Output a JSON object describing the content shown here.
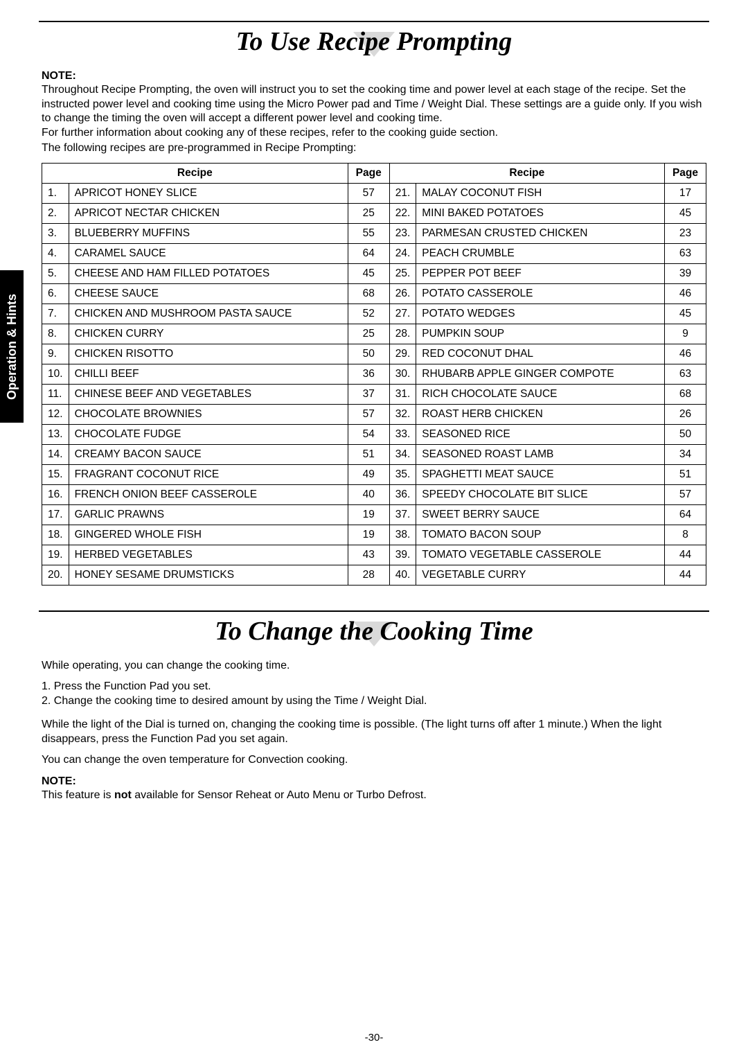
{
  "sideTab": "Operation & Hints",
  "section1": {
    "heading": "To Use Recipe Prompting",
    "noteLabel": "NOTE:",
    "noteBody": "Throughout Recipe Prompting, the oven will instruct you to set the cooking time and power level at each stage of the recipe. Set the instructed power level and cooking time using the Micro Power pad and Time / Weight Dial. These settings are a guide only. If you wish to change the timing the oven will accept a different power level and cooking time.",
    "noteBody2": "For further information about cooking any of these recipes, refer to the cooking guide section.",
    "intro": "The following recipes are pre-programmed in Recipe Prompting:",
    "headers": {
      "recipe": "Recipe",
      "page": "Page"
    },
    "left": [
      {
        "n": "1.",
        "name": "APRICOT HONEY SLICE",
        "p": "57"
      },
      {
        "n": "2.",
        "name": "APRICOT NECTAR CHICKEN",
        "p": "25"
      },
      {
        "n": "3.",
        "name": "BLUEBERRY MUFFINS",
        "p": "55"
      },
      {
        "n": "4.",
        "name": "CARAMEL SAUCE",
        "p": "64"
      },
      {
        "n": "5.",
        "name": "CHEESE AND HAM FILLED POTATOES",
        "p": "45"
      },
      {
        "n": "6.",
        "name": "CHEESE SAUCE",
        "p": "68"
      },
      {
        "n": "7.",
        "name": "CHICKEN AND MUSHROOM PASTA SAUCE",
        "p": "52"
      },
      {
        "n": "8.",
        "name": "CHICKEN CURRY",
        "p": "25"
      },
      {
        "n": "9.",
        "name": "CHICKEN RISOTTO",
        "p": "50"
      },
      {
        "n": "10.",
        "name": "CHILLI BEEF",
        "p": "36"
      },
      {
        "n": "11.",
        "name": "CHINESE BEEF AND VEGETABLES",
        "p": "37"
      },
      {
        "n": "12.",
        "name": "CHOCOLATE BROWNIES",
        "p": "57"
      },
      {
        "n": "13.",
        "name": "CHOCOLATE FUDGE",
        "p": "54"
      },
      {
        "n": "14.",
        "name": "CREAMY BACON SAUCE",
        "p": "51"
      },
      {
        "n": "15.",
        "name": "FRAGRANT COCONUT RICE",
        "p": "49"
      },
      {
        "n": "16.",
        "name": "FRENCH ONION BEEF CASSEROLE",
        "p": "40"
      },
      {
        "n": "17.",
        "name": "GARLIC PRAWNS",
        "p": "19"
      },
      {
        "n": "18.",
        "name": "GINGERED WHOLE FISH",
        "p": "19"
      },
      {
        "n": "19.",
        "name": "HERBED VEGETABLES",
        "p": "43"
      },
      {
        "n": "20.",
        "name": "HONEY SESAME DRUMSTICKS",
        "p": "28"
      }
    ],
    "right": [
      {
        "n": "21.",
        "name": "MALAY COCONUT FISH",
        "p": "17"
      },
      {
        "n": "22.",
        "name": "MINI BAKED POTATOES",
        "p": "45"
      },
      {
        "n": "23.",
        "name": "PARMESAN CRUSTED CHICKEN",
        "p": "23"
      },
      {
        "n": "24.",
        "name": "PEACH CRUMBLE",
        "p": "63"
      },
      {
        "n": "25.",
        "name": "PEPPER POT BEEF",
        "p": "39"
      },
      {
        "n": "26.",
        "name": "POTATO CASSEROLE",
        "p": "46"
      },
      {
        "n": "27.",
        "name": "POTATO WEDGES",
        "p": "45"
      },
      {
        "n": "28.",
        "name": "PUMPKIN SOUP",
        "p": "9"
      },
      {
        "n": "29.",
        "name": "RED COCONUT DHAL",
        "p": "46"
      },
      {
        "n": "30.",
        "name": "RHUBARB APPLE GINGER COMPOTE",
        "p": "63"
      },
      {
        "n": "31.",
        "name": "RICH CHOCOLATE SAUCE",
        "p": "68"
      },
      {
        "n": "32.",
        "name": "ROAST HERB CHICKEN",
        "p": "26"
      },
      {
        "n": "33.",
        "name": "SEASONED RICE",
        "p": "50"
      },
      {
        "n": "34.",
        "name": "SEASONED ROAST LAMB",
        "p": "34"
      },
      {
        "n": "35.",
        "name": "SPAGHETTI MEAT SAUCE",
        "p": "51"
      },
      {
        "n": "36.",
        "name": "SPEEDY CHOCOLATE BIT SLICE",
        "p": "57"
      },
      {
        "n": "37.",
        "name": "SWEET BERRY SAUCE",
        "p": "64"
      },
      {
        "n": "38.",
        "name": "TOMATO BACON SOUP",
        "p": "8"
      },
      {
        "n": "39.",
        "name": "TOMATO VEGETABLE CASSEROLE",
        "p": "44"
      },
      {
        "n": "40.",
        "name": "VEGETABLE CURRY",
        "p": "44"
      }
    ]
  },
  "section2": {
    "heading": "To Change the Cooking Time",
    "p1": "While operating, you can change the cooking time.",
    "step1": "1. Press the Function Pad you set.",
    "step2": "2. Change the cooking time to desired amount by using the Time / Weight Dial.",
    "p2": "While the light of the Dial is turned on, changing the cooking time is possible. (The light turns off after 1 minute.) When the light disappears, press the Function Pad you set again.",
    "p3": "You can change the oven temperature for Convection cooking.",
    "noteLabel": "NOTE:",
    "noteBodyA": "This feature is ",
    "noteBodyBold": "not",
    "noteBodyB": " available for Sensor Reheat or Auto Menu or Turbo Defrost."
  },
  "pageNumber": "-30-"
}
